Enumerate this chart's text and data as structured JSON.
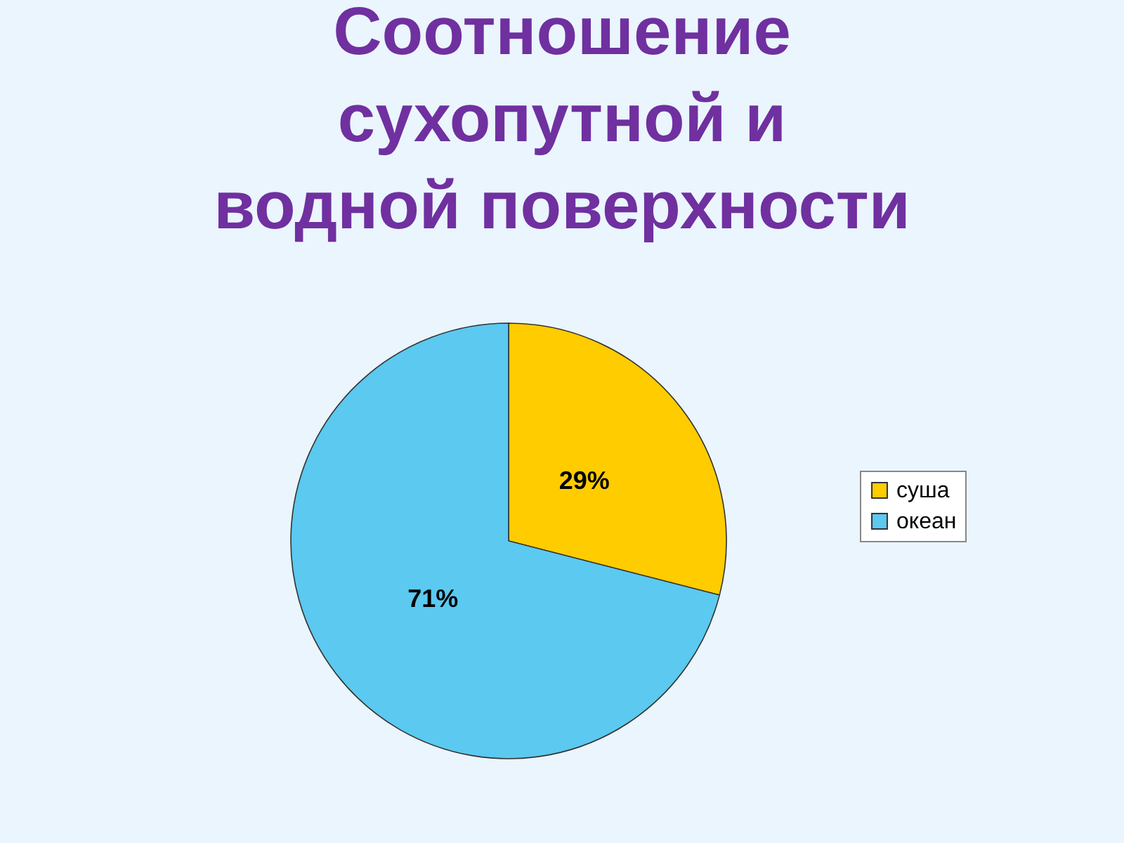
{
  "chart_data": {
    "type": "pie",
    "title": "Соотношение сухопутной и водной поверхности",
    "categories": [
      "суша",
      "океан"
    ],
    "values": [
      29,
      71
    ],
    "colors": [
      "#ffcc00",
      "#5bc9f0"
    ],
    "value_labels": [
      "29%",
      "71%"
    ],
    "legend": "right"
  }
}
